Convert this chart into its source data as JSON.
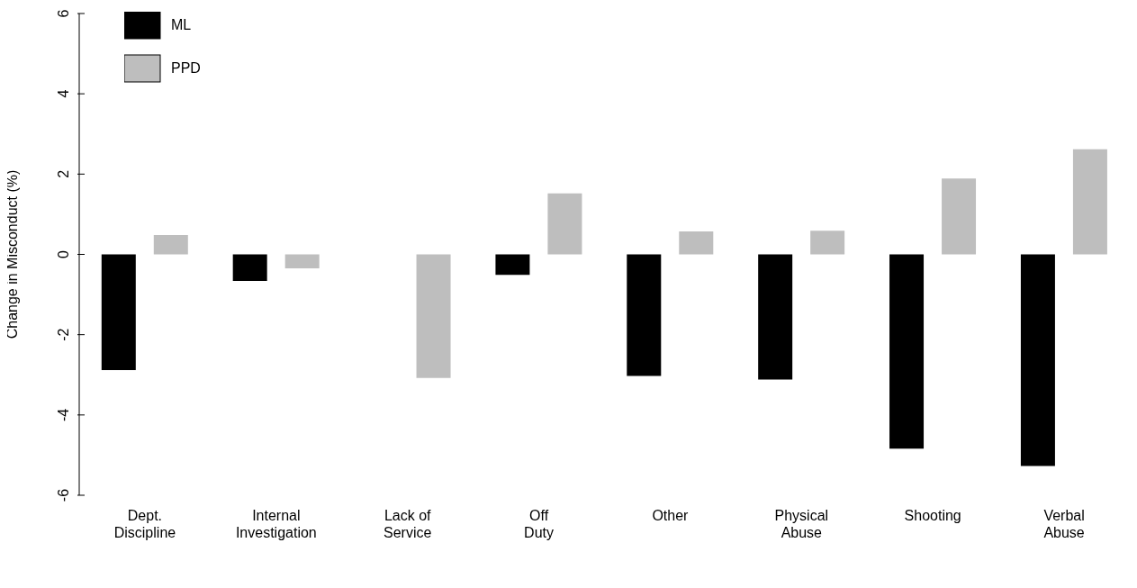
{
  "chart_data": {
    "type": "bar",
    "ylabel": "Change in Misconduct (%)",
    "categories": [
      "Dept.\nDiscipline",
      "Internal\nInvestigation",
      "Lack of\nService",
      "Off\nDuty",
      "Other",
      "Physical\nAbuse",
      "Shooting",
      "Verbal\nAbuse"
    ],
    "series": [
      {
        "name": "ML",
        "color": "#000000",
        "values": [
          -2.88,
          -0.66,
          0,
          -0.51,
          -3.03,
          -3.12,
          -4.84,
          -5.27
        ]
      },
      {
        "name": "PPD",
        "color": "#bebebe",
        "values": [
          0.48,
          -0.35,
          -3.08,
          1.52,
          0.57,
          0.59,
          1.89,
          2.62
        ]
      }
    ],
    "ylim": [
      -6,
      6
    ],
    "yticks": [
      -6,
      -4,
      -2,
      0,
      2,
      4,
      6
    ],
    "grid": false,
    "legend": "top left"
  }
}
